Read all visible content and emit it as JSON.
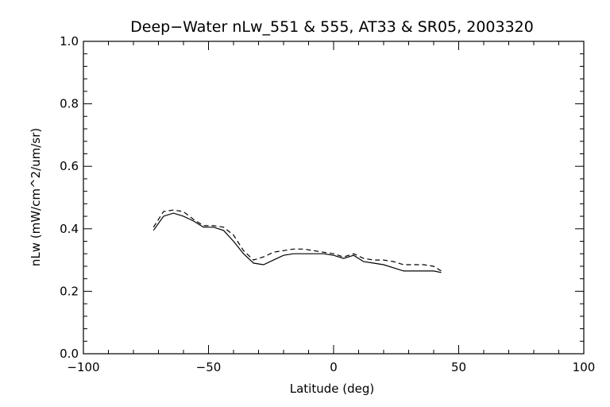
{
  "chart_data": {
    "type": "line",
    "title": "Deep−Water nLw_551 & 555, AT33 & SR05, 2003320",
    "xlabel": "Latitude (deg)",
    "ylabel": "nLw (mW/cm^2/um/sr)",
    "xlim": [
      -100,
      100
    ],
    "ylim": [
      0.0,
      1.0
    ],
    "x_ticks": [
      -100,
      -50,
      0,
      50,
      100
    ],
    "x_tick_labels": [
      "−100",
      "−50",
      "0",
      "50",
      "100"
    ],
    "y_ticks": [
      0.0,
      0.2,
      0.4,
      0.6,
      0.8,
      1.0
    ],
    "y_tick_labels": [
      "0.0",
      "0.2",
      "0.4",
      "0.6",
      "0.8",
      "1.0"
    ],
    "grid": false,
    "colors": {
      "line": "#000000",
      "background": "#ffffff"
    },
    "series": [
      {
        "style": "solid",
        "points": [
          [
            -72,
            0.395
          ],
          [
            -68,
            0.44
          ],
          [
            -64,
            0.45
          ],
          [
            -60,
            0.44
          ],
          [
            -56,
            0.425
          ],
          [
            -52,
            0.405
          ],
          [
            -48,
            0.405
          ],
          [
            -44,
            0.395
          ],
          [
            -40,
            0.36
          ],
          [
            -36,
            0.32
          ],
          [
            -32,
            0.29
          ],
          [
            -28,
            0.285
          ],
          [
            -24,
            0.3
          ],
          [
            -20,
            0.315
          ],
          [
            -16,
            0.32
          ],
          [
            -12,
            0.32
          ],
          [
            -8,
            0.32
          ],
          [
            -4,
            0.32
          ],
          [
            0,
            0.315
          ],
          [
            4,
            0.305
          ],
          [
            8,
            0.315
          ],
          [
            12,
            0.295
          ],
          [
            16,
            0.29
          ],
          [
            20,
            0.285
          ],
          [
            24,
            0.275
          ],
          [
            28,
            0.265
          ],
          [
            32,
            0.265
          ],
          [
            36,
            0.265
          ],
          [
            40,
            0.265
          ],
          [
            43,
            0.26
          ]
        ]
      },
      {
        "style": "dashed",
        "points": [
          [
            -72,
            0.405
          ],
          [
            -68,
            0.455
          ],
          [
            -64,
            0.46
          ],
          [
            -60,
            0.455
          ],
          [
            -56,
            0.43
          ],
          [
            -52,
            0.41
          ],
          [
            -48,
            0.41
          ],
          [
            -44,
            0.405
          ],
          [
            -40,
            0.38
          ],
          [
            -36,
            0.33
          ],
          [
            -32,
            0.3
          ],
          [
            -28,
            0.31
          ],
          [
            -24,
            0.325
          ],
          [
            -20,
            0.33
          ],
          [
            -16,
            0.335
          ],
          [
            -12,
            0.335
          ],
          [
            -8,
            0.33
          ],
          [
            -4,
            0.325
          ],
          [
            0,
            0.32
          ],
          [
            4,
            0.31
          ],
          [
            8,
            0.32
          ],
          [
            12,
            0.305
          ],
          [
            16,
            0.3
          ],
          [
            20,
            0.3
          ],
          [
            24,
            0.295
          ],
          [
            28,
            0.285
          ],
          [
            32,
            0.285
          ],
          [
            36,
            0.285
          ],
          [
            40,
            0.28
          ],
          [
            43,
            0.265
          ]
        ]
      }
    ]
  }
}
